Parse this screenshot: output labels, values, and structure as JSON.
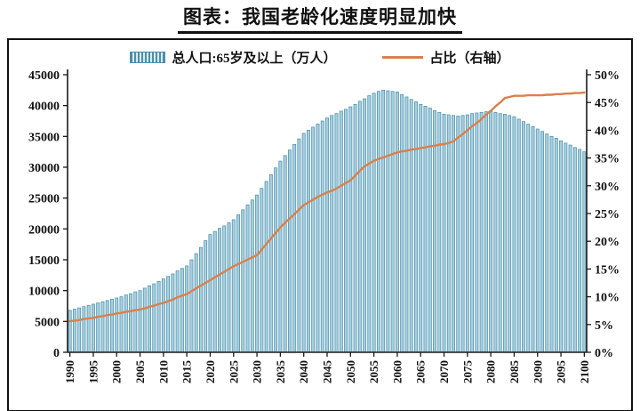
{
  "title": "图表：我国老龄化速度明显加快",
  "legend": {
    "bars_label": "总人口:65岁及以上（万人）",
    "line_label": "占比（右轴）"
  },
  "colors": {
    "bar_fill": "#a6cfdf",
    "bar_stroke": "#488ca8",
    "line": "#d9804d",
    "axis": "#1a1a1a"
  },
  "chart_data": {
    "type": "bar+line",
    "title": "图表：我国老龄化速度明显加快",
    "x_start": 1990,
    "x_end": 2100,
    "x_ticks": [
      1990,
      1995,
      2000,
      2005,
      2010,
      2015,
      2020,
      2025,
      2030,
      2035,
      2040,
      2045,
      2050,
      2055,
      2060,
      2065,
      2070,
      2075,
      2080,
      2085,
      2090,
      2095,
      2100
    ],
    "left_axis": {
      "min": 0,
      "max": 45000,
      "step": 5000,
      "suffix": ""
    },
    "right_axis": {
      "min": 0,
      "max": 50,
      "step": 5,
      "suffix": "%"
    },
    "grid": false,
    "legend_position": "top",
    "series": [
      {
        "name": "总人口:65岁及以上（万人）",
        "type": "bar",
        "axis": "left",
        "values": [
          6800,
          7000,
          7200,
          7400,
          7600,
          7800,
          8000,
          8200,
          8400,
          8600,
          8800,
          9000,
          9300,
          9500,
          9800,
          10000,
          10400,
          10800,
          11100,
          11500,
          11900,
          12300,
          12700,
          13200,
          13600,
          14000,
          15000,
          16000,
          17000,
          18100,
          19100,
          19600,
          20100,
          20500,
          21000,
          21500,
          22300,
          23100,
          23900,
          24700,
          25500,
          26600,
          27700,
          28800,
          29900,
          31000,
          31900,
          32800,
          33700,
          34600,
          35500,
          36000,
          36500,
          37000,
          37500,
          38000,
          38400,
          38700,
          39100,
          39400,
          39800,
          40200,
          40700,
          41100,
          41600,
          42000,
          42300,
          42500,
          42400,
          42300,
          42200,
          41800,
          41400,
          41000,
          40600,
          40200,
          39900,
          39600,
          39200,
          38900,
          38600,
          38500,
          38400,
          38300,
          38400,
          38500,
          38700,
          38800,
          38900,
          39000,
          39100,
          38900,
          38700,
          38600,
          38400,
          38200,
          37800,
          37400,
          37000,
          36600,
          36200,
          35800,
          35400,
          35000,
          34700,
          34300,
          33900,
          33600,
          33200,
          32900,
          32500
        ]
      },
      {
        "name": "占比（右轴）",
        "type": "line",
        "axis": "right",
        "values": [
          5.6,
          5.7,
          5.8,
          6.0,
          6.1,
          6.2,
          6.4,
          6.5,
          6.7,
          6.8,
          7.0,
          7.1,
          7.3,
          7.4,
          7.6,
          7.7,
          7.9,
          8.2,
          8.4,
          8.7,
          8.9,
          9.2,
          9.5,
          9.9,
          10.2,
          10.5,
          11.0,
          11.5,
          12.0,
          12.5,
          13.0,
          13.5,
          14.0,
          14.5,
          15.0,
          15.5,
          15.9,
          16.3,
          16.7,
          17.1,
          17.5,
          18.5,
          19.5,
          20.5,
          21.5,
          22.5,
          23.3,
          24.1,
          24.9,
          25.7,
          26.5,
          27.0,
          27.5,
          28.0,
          28.4,
          28.8,
          29.1,
          29.5,
          30.0,
          30.5,
          31.0,
          31.8,
          32.7,
          33.5,
          34.0,
          34.5,
          34.8,
          35.1,
          35.4,
          35.7,
          36.0,
          36.2,
          36.3,
          36.5,
          36.6,
          36.8,
          36.9,
          37.1,
          37.2,
          37.4,
          37.5,
          37.7,
          38.0,
          38.7,
          39.3,
          40.0,
          40.7,
          41.3,
          42.0,
          42.8,
          43.5,
          44.3,
          45.0,
          45.8,
          46.0,
          46.2,
          46.2,
          46.2,
          46.3,
          46.3,
          46.3,
          46.3,
          46.4,
          46.4,
          46.5,
          46.5,
          46.6,
          46.6,
          46.7,
          46.7,
          46.8
        ]
      }
    ]
  }
}
